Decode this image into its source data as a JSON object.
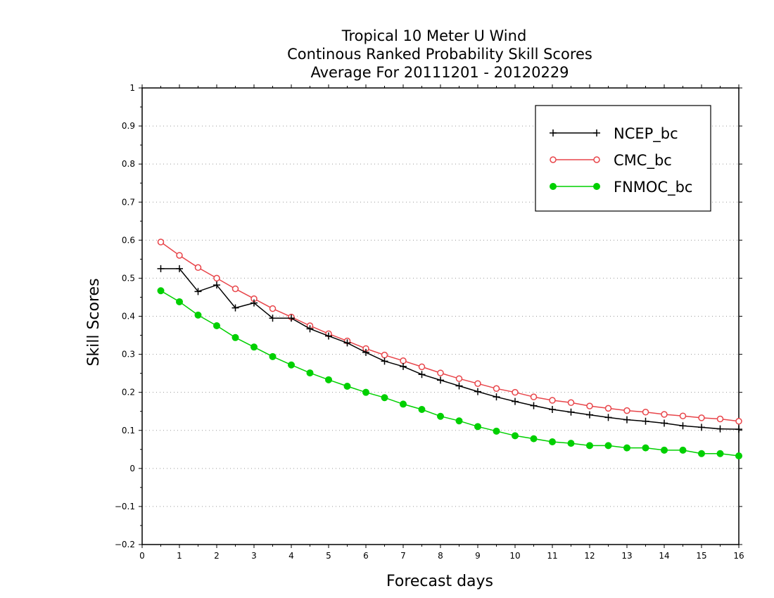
{
  "chart_data": {
    "type": "line",
    "title": [
      "Tropical 10 Meter U Wind",
      "Continous Ranked Probability Skill Scores",
      "Average For 20111201 - 20120229"
    ],
    "xlabel": "Forecast days",
    "ylabel": "Skill Scores",
    "xlim": [
      0,
      16
    ],
    "ylim": [
      -0.2,
      1
    ],
    "xticks": [
      0,
      1,
      2,
      3,
      4,
      5,
      6,
      7,
      8,
      9,
      10,
      11,
      12,
      13,
      14,
      15,
      16
    ],
    "yticks": [
      -0.2,
      -0.1,
      0,
      0.1,
      0.2,
      0.3,
      0.4,
      0.5,
      0.6,
      0.7,
      0.8,
      0.9,
      1
    ],
    "ytick_labels": [
      "−0.2",
      "−0.1",
      "0",
      "0.1",
      "0.2",
      "0.3",
      "0.4",
      "0.5",
      "0.6",
      "0.7",
      "0.8",
      "0.9",
      "1"
    ],
    "grid": "horizontal-dotted",
    "legend_position": "top-right",
    "x": [
      0.5,
      1,
      1.5,
      2,
      2.5,
      3,
      3.5,
      4,
      4.5,
      5,
      5.5,
      6,
      6.5,
      7,
      7.5,
      8,
      8.5,
      9,
      9.5,
      10,
      10.5,
      11,
      11.5,
      12,
      12.5,
      13,
      13.5,
      14,
      14.5,
      15,
      15.5,
      16
    ],
    "series": [
      {
        "name": "NCEP_bc",
        "color": "#000000",
        "marker": "plus",
        "values": [
          0.525,
          0.525,
          0.465,
          0.482,
          0.422,
          0.435,
          0.395,
          0.395,
          0.367,
          0.348,
          0.33,
          0.305,
          0.282,
          0.268,
          0.247,
          0.232,
          0.217,
          0.202,
          0.188,
          0.176,
          0.165,
          0.155,
          0.148,
          0.141,
          0.134,
          0.128,
          0.124,
          0.119,
          0.112,
          0.108,
          0.104,
          0.103
        ]
      },
      {
        "name": "CMC_bc",
        "color": "#e8454a",
        "marker": "open-circle",
        "values": [
          0.595,
          0.56,
          0.528,
          0.5,
          0.472,
          0.446,
          0.42,
          0.398,
          0.375,
          0.354,
          0.335,
          0.315,
          0.298,
          0.283,
          0.267,
          0.251,
          0.236,
          0.223,
          0.21,
          0.2,
          0.188,
          0.179,
          0.173,
          0.164,
          0.158,
          0.152,
          0.148,
          0.142,
          0.138,
          0.133,
          0.13,
          0.124
        ]
      },
      {
        "name": "FNMOC_bc",
        "color": "#00d000",
        "marker": "filled-circle",
        "values": [
          0.467,
          0.438,
          0.403,
          0.375,
          0.344,
          0.319,
          0.294,
          0.272,
          0.251,
          0.233,
          0.216,
          0.2,
          0.186,
          0.169,
          0.155,
          0.137,
          0.125,
          0.11,
          0.098,
          0.086,
          0.078,
          0.07,
          0.066,
          0.06,
          0.06,
          0.054,
          0.054,
          0.048,
          0.048,
          0.039,
          0.039,
          0.033
        ]
      }
    ]
  }
}
